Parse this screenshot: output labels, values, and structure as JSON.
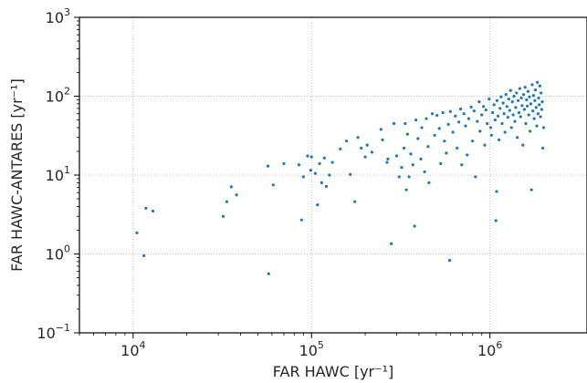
{
  "chart_data": {
    "type": "scatter",
    "xlabel": "FAR HAWC [yr⁻¹]",
    "ylabel": "FAR HAWC-ANTARES [yr⁻¹]",
    "xscale": "log",
    "yscale": "log",
    "xlim": [
      5000,
      3500000
    ],
    "ylim": [
      0.1,
      1000
    ],
    "grid": true,
    "marker_color": "#1f77b4",
    "x_ticks": [
      {
        "value": 10000,
        "base": "10",
        "exp": "4"
      },
      {
        "value": 100000,
        "base": "10",
        "exp": "5"
      },
      {
        "value": 1000000,
        "base": "10",
        "exp": "6"
      }
    ],
    "y_ticks": [
      {
        "value": 0.1,
        "base": "10",
        "exp": "−1"
      },
      {
        "value": 1,
        "base": "10",
        "exp": "0"
      },
      {
        "value": 10,
        "base": "10",
        "exp": "1"
      },
      {
        "value": 100,
        "base": "10",
        "exp": "2"
      },
      {
        "value": 1000,
        "base": "10",
        "exp": "3"
      }
    ],
    "points": [
      [
        10500,
        1.85
      ],
      [
        11500,
        0.95
      ],
      [
        11800,
        3.8
      ],
      [
        12900,
        3.5
      ],
      [
        32000,
        3.0
      ],
      [
        33500,
        4.6
      ],
      [
        35500,
        7.1
      ],
      [
        38000,
        5.6
      ],
      [
        57000,
        13.0
      ],
      [
        61000,
        7.5
      ],
      [
        57500,
        0.56
      ],
      [
        70000,
        14.0
      ],
      [
        85000,
        13.5
      ],
      [
        88000,
        2.7
      ],
      [
        90000,
        9.5
      ],
      [
        95000,
        17.5
      ],
      [
        100000,
        17.0
      ],
      [
        99000,
        11.5
      ],
      [
        105000,
        10.5
      ],
      [
        108000,
        4.2
      ],
      [
        111000,
        14.0
      ],
      [
        114000,
        8.0
      ],
      [
        118000,
        16.5
      ],
      [
        121000,
        7.2
      ],
      [
        126000,
        10.0
      ],
      [
        131000,
        14.5
      ],
      [
        145000,
        21.5
      ],
      [
        157000,
        27.0
      ],
      [
        165000,
        10.2
      ],
      [
        175000,
        4.6
      ],
      [
        182000,
        30.0
      ],
      [
        190000,
        22.0
      ],
      [
        200000,
        17.0
      ],
      [
        205000,
        24.0
      ],
      [
        218000,
        19.5
      ],
      [
        245000,
        38.0
      ],
      [
        250000,
        28.0
      ],
      [
        265000,
        14.5
      ],
      [
        268000,
        16.0
      ],
      [
        280000,
        1.35
      ],
      [
        290000,
        45.0
      ],
      [
        300000,
        17.5
      ],
      [
        310000,
        9.5
      ],
      [
        320000,
        12.5
      ],
      [
        330000,
        22.0
      ],
      [
        335000,
        45.0
      ],
      [
        340000,
        6.5
      ],
      [
        345000,
        33.0
      ],
      [
        352000,
        9.5
      ],
      [
        360000,
        18.5
      ],
      [
        370000,
        13.5
      ],
      [
        378000,
        2.25
      ],
      [
        385000,
        50.0
      ],
      [
        395000,
        29.0
      ],
      [
        410000,
        16.0
      ],
      [
        415000,
        40.0
      ],
      [
        430000,
        11.0
      ],
      [
        440000,
        52.0
      ],
      [
        450000,
        23.0
      ],
      [
        455000,
        8.0
      ],
      [
        475000,
        60.0
      ],
      [
        490000,
        32.0
      ],
      [
        505000,
        57.0
      ],
      [
        520000,
        39.0
      ],
      [
        530000,
        14.0
      ],
      [
        545000,
        62.0
      ],
      [
        556000,
        27.0
      ],
      [
        570000,
        19.0
      ],
      [
        585000,
        44.0
      ],
      [
        595000,
        0.83
      ],
      [
        600000,
        64.0
      ],
      [
        620000,
        35.0
      ],
      [
        640000,
        56.0
      ],
      [
        655000,
        22.0
      ],
      [
        670000,
        47.0
      ],
      [
        685000,
        69.0
      ],
      [
        695000,
        13.5
      ],
      [
        715000,
        60.0
      ],
      [
        730000,
        42.0
      ],
      [
        745000,
        18.0
      ],
      [
        760000,
        52.0
      ],
      [
        785000,
        73.0
      ],
      [
        800000,
        27.0
      ],
      [
        815000,
        65.0
      ],
      [
        830000,
        9.5
      ],
      [
        850000,
        48.0
      ],
      [
        870000,
        85.0
      ],
      [
        880000,
        36.0
      ],
      [
        900000,
        58.0
      ],
      [
        920000,
        74.0
      ],
      [
        935000,
        24.0
      ],
      [
        950000,
        67.0
      ],
      [
        965000,
        45.0
      ],
      [
        990000,
        92.0
      ],
      [
        1010000,
        40.0
      ],
      [
        1020000,
        32.0
      ],
      [
        1035000,
        62.0
      ],
      [
        1055000,
        78.0
      ],
      [
        1070000,
        50.0
      ],
      [
        1080000,
        2.65
      ],
      [
        1090000,
        6.2
      ],
      [
        1095000,
        88.0
      ],
      [
        1110000,
        56.0
      ],
      [
        1125000,
        28.0
      ],
      [
        1140000,
        70.0
      ],
      [
        1155000,
        98.0
      ],
      [
        1170000,
        45.0
      ],
      [
        1185000,
        82.0
      ],
      [
        1200000,
        60.0
      ],
      [
        1215000,
        35.0
      ],
      [
        1230000,
        105.0
      ],
      [
        1245000,
        74.0
      ],
      [
        1260000,
        54.0
      ],
      [
        1275000,
        92.0
      ],
      [
        1290000,
        66.0
      ],
      [
        1305000,
        118.0
      ],
      [
        1320000,
        40.0
      ],
      [
        1335000,
        85.0
      ],
      [
        1350000,
        58.0
      ],
      [
        1365000,
        100.0
      ],
      [
        1380000,
        48.0
      ],
      [
        1395000,
        72.0
      ],
      [
        1410000,
        110.0
      ],
      [
        1425000,
        30.0
      ],
      [
        1440000,
        88.0
      ],
      [
        1455000,
        62.0
      ],
      [
        1470000,
        125.0
      ],
      [
        1485000,
        55.0
      ],
      [
        1500000,
        95.0
      ],
      [
        1515000,
        76.0
      ],
      [
        1530000,
        24.0
      ],
      [
        1545000,
        105.0
      ],
      [
        1560000,
        68.0
      ],
      [
        1575000,
        130.0
      ],
      [
        1590000,
        45.0
      ],
      [
        1605000,
        90.0
      ],
      [
        1620000,
        75.0
      ],
      [
        1635000,
        115.0
      ],
      [
        1650000,
        58.0
      ],
      [
        1665000,
        98.0
      ],
      [
        1680000,
        36.0
      ],
      [
        1695000,
        80.0
      ],
      [
        1710000,
        6.5
      ],
      [
        1725000,
        140.0
      ],
      [
        1740000,
        65.0
      ],
      [
        1755000,
        102.0
      ],
      [
        1770000,
        52.0
      ],
      [
        1785000,
        88.0
      ],
      [
        1800000,
        120.0
      ],
      [
        1815000,
        72.0
      ],
      [
        1830000,
        42.0
      ],
      [
        1845000,
        150.0
      ],
      [
        1860000,
        60.0
      ],
      [
        1875000,
        95.0
      ],
      [
        1890000,
        78.0
      ],
      [
        1905000,
        135.0
      ],
      [
        1920000,
        55.0
      ],
      [
        1935000,
        110.0
      ],
      [
        1950000,
        68.0
      ],
      [
        1965000,
        85.0
      ],
      [
        1980000,
        22.0
      ],
      [
        2000000,
        40.0
      ]
    ]
  }
}
